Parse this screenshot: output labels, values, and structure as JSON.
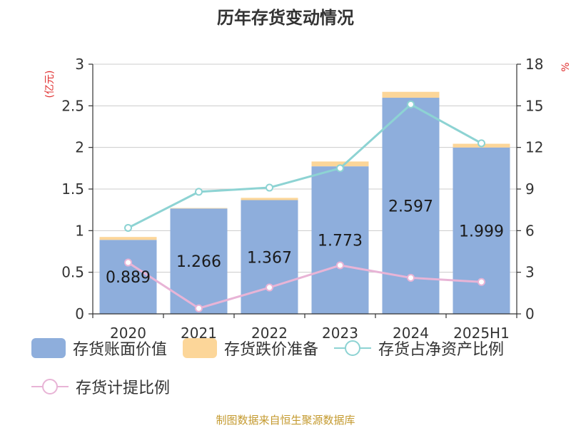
{
  "chart_data": {
    "type": "bar",
    "title": "历年存货变动情况",
    "categories": [
      "2020",
      "2021",
      "2022",
      "2023",
      "2024",
      "2025H1"
    ],
    "left_axis": {
      "unit_label": "(亿元)",
      "ylim": [
        0,
        3
      ],
      "ticks": [
        "0",
        "0.5",
        "1",
        "1.5",
        "2",
        "2.5",
        "3"
      ]
    },
    "right_axis": {
      "unit_label": "%",
      "ylim": [
        0,
        18
      ],
      "ticks": [
        "0",
        "3",
        "6",
        "9",
        "12",
        "15",
        "18"
      ]
    },
    "bar_labels": [
      "0.889",
      "1.266",
      "1.367",
      "1.773",
      "2.597",
      "1.999"
    ],
    "series": [
      {
        "name": "存货账面价值",
        "kind": "bar",
        "axis": "left",
        "stack": true,
        "color": "#8eaedc",
        "values": [
          0.889,
          1.266,
          1.367,
          1.773,
          2.597,
          1.999
        ]
      },
      {
        "name": "存货跌价准备",
        "kind": "bar",
        "axis": "left",
        "stack": true,
        "color": "#fcd699",
        "values": [
          0.035,
          0.006,
          0.027,
          0.058,
          0.071,
          0.045
        ]
      },
      {
        "name": "存货占净资产比例",
        "kind": "line",
        "axis": "right",
        "color": "#8dd3d3",
        "values": [
          6.2,
          8.8,
          9.1,
          10.5,
          15.1,
          12.3
        ]
      },
      {
        "name": "存货计提比例",
        "kind": "line",
        "axis": "right",
        "color": "#e8b4d6",
        "values": [
          3.7,
          0.4,
          1.9,
          3.5,
          2.6,
          2.3
        ]
      }
    ],
    "grid": true,
    "legend_position": "bottom"
  },
  "footer": {
    "source": "制图数据来自恒生聚源数据库"
  }
}
